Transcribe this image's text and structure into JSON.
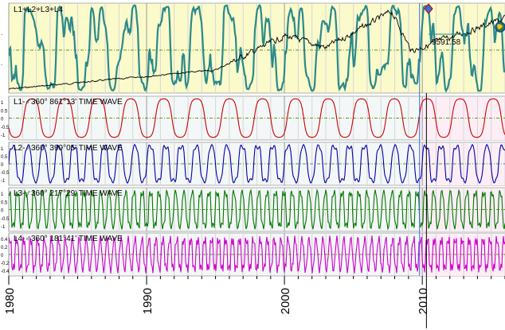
{
  "chart_data": [
    {
      "type": "line",
      "panel": "composite",
      "title": "L1+L2+L3+L4",
      "price_label": "9591.58",
      "series": [
        {
          "name": "L1+L2+L3+L4",
          "color": "#2a8a8a"
        },
        {
          "name": "",
          "color": "#000000"
        }
      ]
    },
    {
      "type": "line",
      "panel": "L1",
      "title": "L1-♂360° 861°13' TIME WAVE",
      "color": "#cc0000",
      "y_ticks": [
        "1",
        "0.5",
        "0",
        "-0.5",
        "-1"
      ]
    },
    {
      "type": "line",
      "panel": "L2",
      "title": "L2-♂360° 399°05' TIME WAVE",
      "color": "#0000aa",
      "y_ticks": [
        "1",
        "0.5",
        "0",
        "-0.5",
        "-1"
      ]
    },
    {
      "type": "line",
      "panel": "L3",
      "title": "L3-♂360° 217°29' TIME WAVE",
      "color": "#007700",
      "y_ticks": [
        "1",
        "0.5",
        "0",
        "-0.5",
        "-1"
      ]
    },
    {
      "type": "line",
      "panel": "L4",
      "title": "L4-♂360° 181°41' TIME WAVE",
      "color": "#cc00cc",
      "y_ticks": [
        "0.4",
        "0.2",
        "0",
        "-0.2",
        "-0.4"
      ]
    }
  ],
  "x_axis": {
    "range": [
      1980,
      2016
    ],
    "labels": [
      "1980",
      "1990",
      "2000",
      "2010"
    ]
  },
  "cursor_year": 2009.8,
  "forecast_start": 2010.3
}
